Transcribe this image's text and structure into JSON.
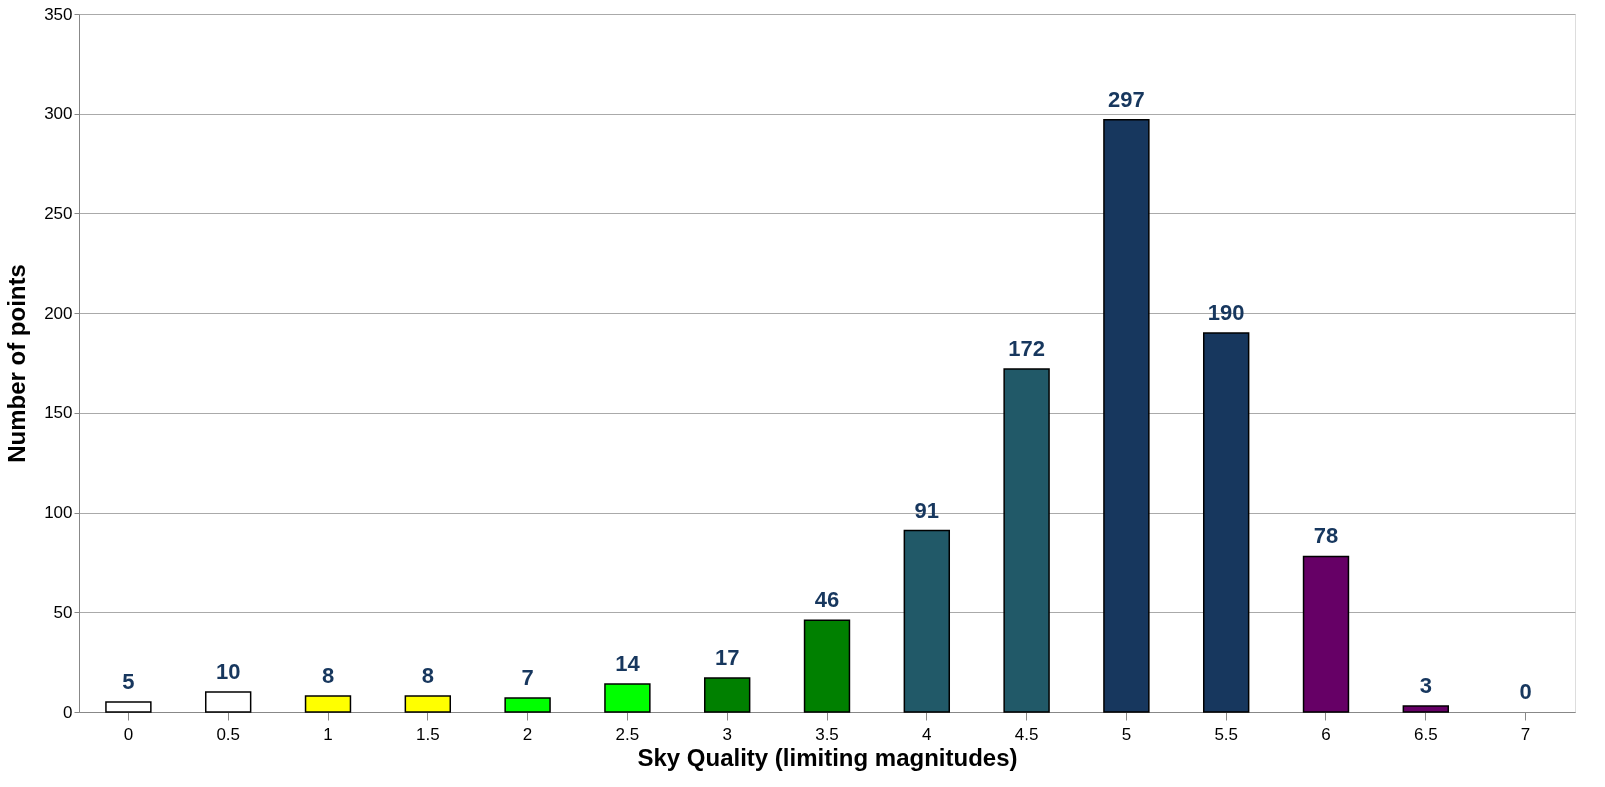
{
  "chart_data": {
    "type": "bar",
    "xlabel": "Sky Quality (limiting magnitudes)",
    "ylabel": "Number of points",
    "categories": [
      "0",
      "0.5",
      "1",
      "1.5",
      "2",
      "2.5",
      "3",
      "3.5",
      "4",
      "4.5",
      "5",
      "5.5",
      "6",
      "6.5",
      "7"
    ],
    "values": [
      5,
      10,
      8,
      8,
      7,
      14,
      17,
      46,
      91,
      172,
      297,
      190,
      78,
      3,
      0
    ],
    "colors": [
      "#ffffff",
      "#ffffff",
      "#ffff00",
      "#ffff00",
      "#00ff00",
      "#00ff00",
      "#008000",
      "#008000",
      "#215968",
      "#215968",
      "#17375e",
      "#17375e",
      "#660066",
      "#660066",
      "#17375e"
    ],
    "ylim": [
      0,
      350
    ],
    "yticks": [
      0,
      50,
      100,
      150,
      200,
      250,
      300,
      350
    ],
    "grid": "y",
    "data_labels": true
  }
}
